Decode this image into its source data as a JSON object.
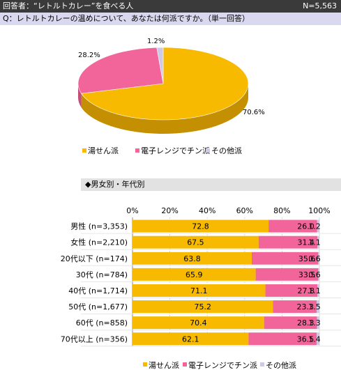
{
  "header": {
    "respondents": "回答者：“レトルトカレー”を食べる人",
    "n": "N=5,563"
  },
  "question": "Q：レトルトカレーの温めについて、あなたは何派ですか。（単一回答）",
  "legend": [
    "湯せん派",
    "電子レンジでチン派",
    "その他派"
  ],
  "subheading": "◆男女別・年代別",
  "colors": {
    "yusen": "#f7ba00",
    "denshi": "#f2659a",
    "other": "#cdc9e6"
  },
  "chart_data": [
    {
      "type": "pie",
      "labels": [
        "湯せん派",
        "電子レンジでチン派",
        "その他派"
      ],
      "values": [
        70.6,
        28.2,
        1.2
      ],
      "value_labels": [
        "70.6%",
        "28.2%",
        "1.2%"
      ],
      "style": "3d",
      "legend": "bottom"
    },
    {
      "type": "bar",
      "orientation": "horizontal",
      "stacked": "percent",
      "categories": [
        "男性 (n=3,353)",
        "女性 (n=2,210)",
        "20代以下 (n=174)",
        "30代 (n=784)",
        "40代 (n=1,714)",
        "50代 (n=1,677)",
        "60代 (n=858)",
        "70代以上 (n=356)"
      ],
      "series": [
        {
          "name": "湯せん派",
          "values": [
            72.8,
            67.5,
            63.8,
            65.9,
            71.1,
            75.2,
            70.4,
            62.1
          ]
        },
        {
          "name": "電子レンジでチン派",
          "values": [
            26.0,
            31.4,
            35.6,
            33.5,
            27.8,
            23.3,
            28.3,
            36.5
          ]
        },
        {
          "name": "その他派",
          "values": [
            1.2,
            1.1,
            0.6,
            0.6,
            1.1,
            1.5,
            1.3,
            1.4
          ]
        }
      ],
      "value_labels": [
        [
          "72.8",
          "26.0",
          "1.2"
        ],
        [
          "67.5",
          "31.4",
          "1.1"
        ],
        [
          "63.8",
          "35.6",
          "0.6"
        ],
        [
          "65.9",
          "33.5",
          "0.6"
        ],
        [
          "71.1",
          "27.8",
          "1.1"
        ],
        [
          "75.2",
          "23.3",
          "1.5"
        ],
        [
          "70.4",
          "28.3",
          "1.3"
        ],
        [
          "62.1",
          "36.5",
          "1.4"
        ]
      ],
      "xlim": [
        0,
        100
      ],
      "xticks": [
        "0%",
        "20%",
        "40%",
        "60%",
        "80%",
        "100%"
      ],
      "grid": true,
      "legend": "bottom"
    }
  ]
}
